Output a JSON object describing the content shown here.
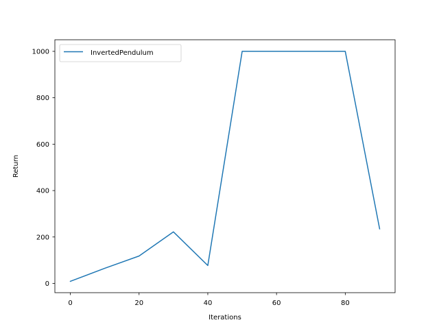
{
  "chart_data": {
    "type": "line",
    "xlabel": "Iterations",
    "ylabel": "Return",
    "xlim": [
      -4.5,
      94.5
    ],
    "ylim": [
      -40,
      1050
    ],
    "xticks": [
      0,
      20,
      40,
      60,
      80
    ],
    "yticks": [
      0,
      200,
      400,
      600,
      800,
      1000
    ],
    "grid": false,
    "legend_position": "upper-left",
    "series": [
      {
        "name": "InvertedPendulum",
        "color": "#1f77b4",
        "x": [
          0,
          10,
          20,
          30,
          40,
          50,
          60,
          70,
          80,
          90
        ],
        "y": [
          9,
          65,
          118,
          222,
          77,
          1000,
          1000,
          1000,
          1000,
          235
        ]
      }
    ]
  }
}
